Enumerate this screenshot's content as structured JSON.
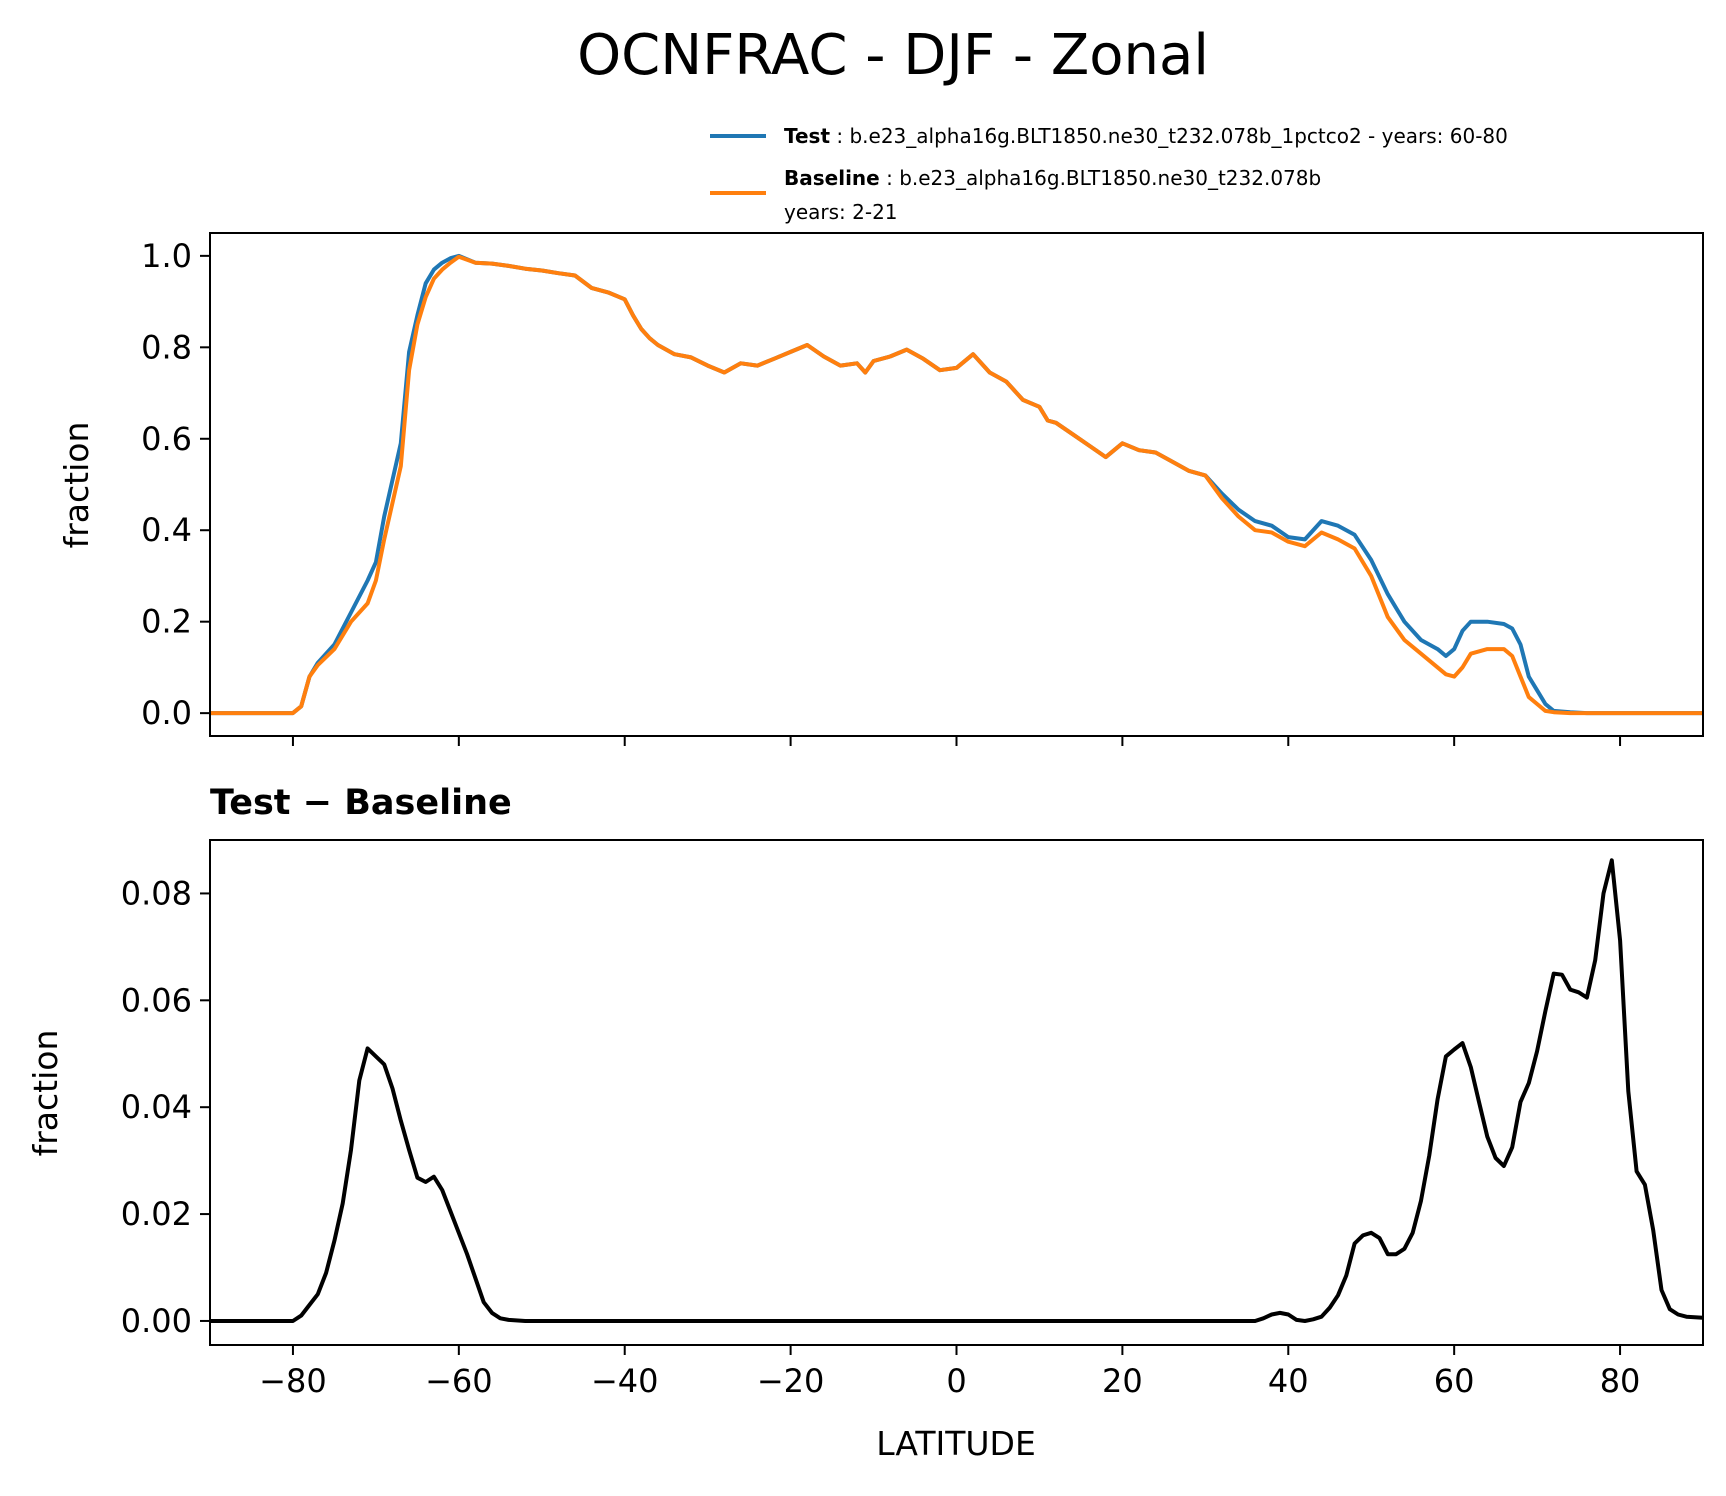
{
  "title": "OCNFRAC - DJF - Zonal",
  "legend": [
    {
      "label": "Test",
      "text": "b.e23_alpha16g.BLT1850.ne30_t232.078b_1pctco2 - years: 60-80",
      "text2": "",
      "color": "#1f77b4"
    },
    {
      "label": "Baseline",
      "text": "b.e23_alpha16g.BLT1850.ne30_t232.078b",
      "text2": "years: 2-21",
      "color": "#ff7f0e"
    }
  ],
  "chart_data": [
    {
      "type": "line",
      "ylabel": "fraction",
      "xlim": [
        -90,
        90
      ],
      "ylim": [
        -0.05,
        1.05
      ],
      "yticks": [
        "0.0",
        "0.2",
        "0.4",
        "0.6",
        "0.8",
        "1.0"
      ],
      "x": [
        -90,
        -80,
        -79,
        -78,
        -77,
        -75,
        -73,
        -71,
        -70,
        -69,
        -67,
        -66,
        -65,
        -64,
        -63,
        -62,
        -61,
        -60,
        -58,
        -56,
        -54,
        -52,
        -50,
        -48,
        -46,
        -44,
        -42,
        -40,
        -39,
        -38,
        -37,
        -36,
        -35,
        -34,
        -32,
        -30,
        -28,
        -26,
        -24,
        -22,
        -20,
        -18,
        -16,
        -14,
        -12,
        -11,
        -10,
        -8,
        -6,
        -4,
        -2,
        0,
        2,
        4,
        6,
        8,
        10,
        11,
        12,
        14,
        16,
        18,
        20,
        22,
        24,
        26,
        28,
        30,
        32,
        34,
        36,
        38,
        40,
        42,
        44,
        46,
        48,
        50,
        52,
        54,
        56,
        58,
        59,
        60,
        61,
        62,
        64,
        66,
        67,
        68,
        69,
        70,
        71,
        72,
        74,
        76,
        77,
        78,
        80,
        82,
        84,
        86,
        90
      ],
      "series": [
        {
          "name": "Test",
          "color": "#1f77b4",
          "values": [
            0,
            0,
            0.015,
            0.08,
            0.11,
            0.15,
            0.22,
            0.29,
            0.33,
            0.43,
            0.59,
            0.79,
            0.87,
            0.94,
            0.97,
            0.985,
            0.995,
            1.0,
            0.985,
            0.983,
            0.978,
            0.972,
            0.968,
            0.962,
            0.957,
            0.93,
            0.92,
            0.905,
            0.87,
            0.84,
            0.82,
            0.805,
            0.795,
            0.785,
            0.778,
            0.76,
            0.745,
            0.765,
            0.76,
            0.775,
            0.79,
            0.805,
            0.78,
            0.76,
            0.765,
            0.745,
            0.77,
            0.78,
            0.795,
            0.775,
            0.75,
            0.755,
            0.785,
            0.745,
            0.725,
            0.685,
            0.67,
            0.64,
            0.635,
            0.61,
            0.585,
            0.56,
            0.59,
            0.575,
            0.57,
            0.55,
            0.53,
            0.52,
            0.48,
            0.445,
            0.42,
            0.41,
            0.385,
            0.38,
            0.42,
            0.41,
            0.39,
            0.335,
            0.26,
            0.2,
            0.16,
            0.14,
            0.125,
            0.14,
            0.18,
            0.2,
            0.2,
            0.195,
            0.185,
            0.15,
            0.08,
            0.05,
            0.02,
            0.005,
            0.002,
            0,
            0,
            0,
            0,
            0,
            0,
            0,
            0
          ]
        },
        {
          "name": "Baseline",
          "color": "#ff7f0e",
          "values": [
            0,
            0,
            0.015,
            0.08,
            0.105,
            0.14,
            0.2,
            0.24,
            0.29,
            0.38,
            0.54,
            0.75,
            0.85,
            0.91,
            0.95,
            0.97,
            0.985,
            0.998,
            0.985,
            0.983,
            0.978,
            0.972,
            0.968,
            0.962,
            0.957,
            0.93,
            0.92,
            0.905,
            0.87,
            0.84,
            0.82,
            0.805,
            0.795,
            0.785,
            0.778,
            0.76,
            0.745,
            0.765,
            0.76,
            0.775,
            0.79,
            0.805,
            0.78,
            0.76,
            0.765,
            0.745,
            0.77,
            0.78,
            0.795,
            0.775,
            0.75,
            0.755,
            0.785,
            0.745,
            0.725,
            0.685,
            0.67,
            0.64,
            0.635,
            0.61,
            0.585,
            0.56,
            0.59,
            0.575,
            0.57,
            0.55,
            0.53,
            0.52,
            0.47,
            0.43,
            0.4,
            0.395,
            0.375,
            0.365,
            0.395,
            0.38,
            0.36,
            0.3,
            0.21,
            0.16,
            0.13,
            0.1,
            0.085,
            0.08,
            0.1,
            0.13,
            0.14,
            0.14,
            0.125,
            0.08,
            0.035,
            0.02,
            0.005,
            0.002,
            0,
            0,
            0,
            0,
            0,
            0,
            0,
            0,
            0
          ]
        }
      ]
    },
    {
      "type": "line",
      "title": "Test − Baseline",
      "xlabel": "LATITUDE",
      "ylabel": "fraction",
      "xlim": [
        -90,
        90
      ],
      "ylim": [
        -0.0045,
        0.09
      ],
      "yticks": [
        "0.00",
        "0.02",
        "0.04",
        "0.06",
        "0.08"
      ],
      "xticks": [
        "−80",
        "−60",
        "−40",
        "−20",
        "0",
        "20",
        "40",
        "60",
        "80"
      ],
      "x": [
        -90,
        -80,
        -79,
        -78,
        -77,
        -76,
        -75,
        -74,
        -73,
        -72,
        -71,
        -70,
        -69,
        -68,
        -67,
        -66,
        -65,
        -64,
        -63,
        -62,
        -61,
        -60,
        -59,
        -58,
        -57,
        -56,
        -55,
        -54,
        -52,
        0,
        36,
        37,
        38,
        39,
        40,
        41,
        42,
        43,
        44,
        45,
        46,
        47,
        48,
        49,
        50,
        51,
        52,
        53,
        54,
        55,
        56,
        57,
        58,
        59,
        60,
        61,
        62,
        63,
        64,
        65,
        66,
        67,
        68,
        69,
        70,
        71,
        72,
        73,
        74,
        75,
        76,
        77,
        78,
        79,
        80,
        81,
        82,
        83,
        84,
        85,
        86,
        87,
        88,
        90
      ],
      "series": [
        {
          "name": "",
          "color": "#000000",
          "values": [
            0,
            0,
            0.001,
            0.003,
            0.005,
            0.009,
            0.015,
            0.022,
            0.032,
            0.045,
            0.051,
            0.0495,
            0.048,
            0.0435,
            0.0375,
            0.032,
            0.0268,
            0.026,
            0.027,
            0.0245,
            0.0205,
            0.0165,
            0.0125,
            0.008,
            0.0035,
            0.0015,
            0.0005,
            0.0002,
            0,
            0,
            0,
            0.0005,
            0.0012,
            0.0015,
            0.0012,
            0.0002,
            0,
            0.0003,
            0.0008,
            0.0025,
            0.0048,
            0.0085,
            0.0145,
            0.016,
            0.0165,
            0.0155,
            0.0125,
            0.0125,
            0.0135,
            0.0165,
            0.0225,
            0.031,
            0.0415,
            0.0495,
            0.0508,
            0.052,
            0.0475,
            0.041,
            0.0345,
            0.0305,
            0.029,
            0.0325,
            0.041,
            0.0445,
            0.0505,
            0.058,
            0.065,
            0.0648,
            0.062,
            0.0615,
            0.0605,
            0.0675,
            0.08,
            0.0862,
            0.0712,
            0.043,
            0.028,
            0.0255,
            0.017,
            0.0058,
            0.0022,
            0.0012,
            0.0008,
            0.0006
          ]
        }
      ]
    }
  ]
}
